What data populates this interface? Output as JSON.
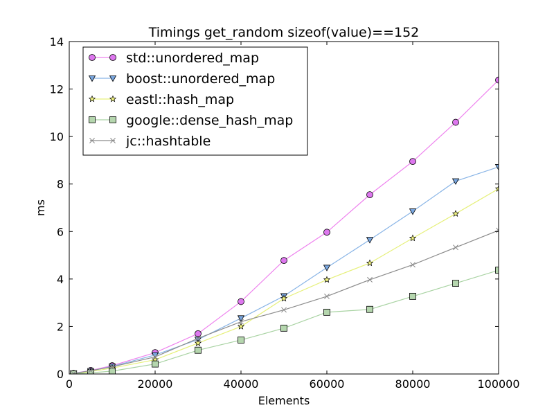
{
  "chart_data": {
    "type": "line",
    "title": "Timings get_random sizeof(value)==152",
    "xlabel": "Elements",
    "ylabel": "ms",
    "xlim": [
      0,
      100000
    ],
    "ylim": [
      0,
      14
    ],
    "x_ticks": [
      0,
      20000,
      40000,
      60000,
      80000,
      100000
    ],
    "x_tick_labels": [
      "0",
      "20000",
      "40000",
      "60000",
      "80000",
      "100000"
    ],
    "y_ticks": [
      0,
      2,
      4,
      6,
      8,
      10,
      12,
      14
    ],
    "y_tick_labels": [
      "0",
      "2",
      "4",
      "6",
      "8",
      "10",
      "12",
      "14"
    ],
    "grid": false,
    "legend_position": "top-left",
    "x": [
      1000,
      5000,
      10000,
      20000,
      30000,
      40000,
      50000,
      60000,
      70000,
      80000,
      90000,
      100000
    ],
    "series": [
      {
        "name": "std::unordered_map",
        "marker": "circle",
        "line_color": "#ee82ee",
        "marker_color": "#dd77ee",
        "values": [
          0.03,
          0.15,
          0.35,
          0.9,
          1.7,
          3.05,
          4.78,
          5.97,
          7.55,
          8.95,
          10.6,
          12.38
        ]
      },
      {
        "name": "boost::unordered_map",
        "marker": "triangle-down",
        "line_color": "#88b4e6",
        "marker_color": "#7aa7e0",
        "values": [
          0.03,
          0.13,
          0.32,
          0.8,
          1.45,
          2.35,
          3.28,
          4.48,
          5.65,
          6.85,
          8.12,
          8.72
        ]
      },
      {
        "name": "eastl::hash_map",
        "marker": "star",
        "line_color": "#e6f07a",
        "marker_color": "#f2f580",
        "values": [
          0.02,
          0.1,
          0.25,
          0.6,
          1.3,
          2.0,
          3.18,
          3.97,
          4.67,
          5.72,
          6.75,
          7.8
        ]
      },
      {
        "name": "google::dense_hash_map",
        "marker": "square",
        "line_color": "#a9d3a3",
        "marker_color": "#b5d6ae",
        "values": [
          0.01,
          0.05,
          0.12,
          0.42,
          1.0,
          1.43,
          1.93,
          2.6,
          2.72,
          3.27,
          3.82,
          4.37
        ]
      },
      {
        "name": "jc::hashtable",
        "marker": "x",
        "line_color": "#8c8c8c",
        "marker_color": "#888888",
        "values": [
          0.02,
          0.14,
          0.3,
          0.72,
          1.5,
          2.2,
          2.7,
          3.27,
          3.97,
          4.6,
          5.33,
          6.05
        ]
      }
    ]
  }
}
